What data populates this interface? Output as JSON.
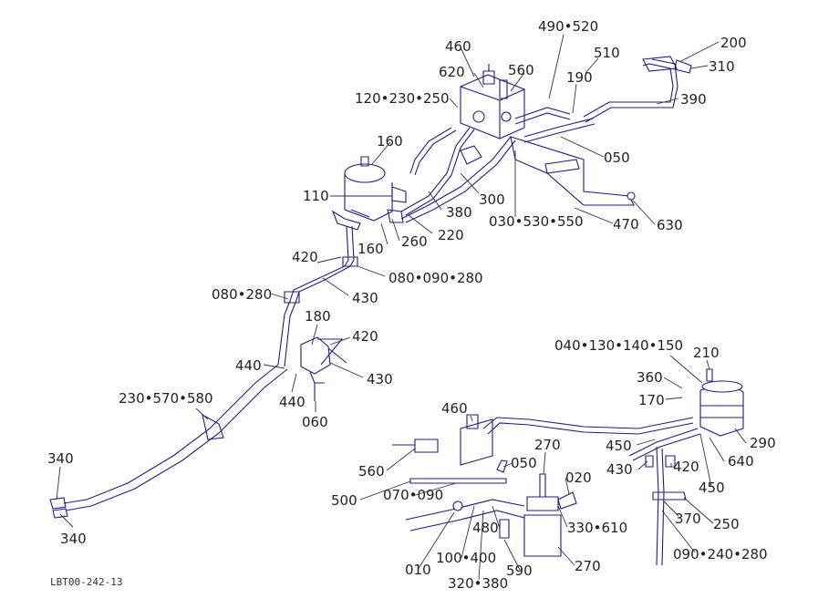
{
  "diagram_code": "LBT00-242-13",
  "colors": {
    "line": "#1c1c8a",
    "leader": "#333333",
    "text": "#222222"
  },
  "labels": {
    "l460a": "460",
    "l490": "490•520",
    "l200": "200",
    "l510": "510",
    "l620": "620",
    "l560a": "560",
    "l310": "310",
    "l190": "190",
    "l120": "120•230•250",
    "l390": "390",
    "l160a": "160",
    "l050a": "050",
    "l110": "110",
    "l300": "300",
    "l380": "380",
    "l030": "030•530•550",
    "l220": "220",
    "l260": "260",
    "l160b": "160",
    "l470": "470",
    "l630": "630",
    "l420a": "420",
    "l080a": "080•090•280",
    "l430a": "430",
    "l080b": "080•280",
    "l180": "180",
    "l420b": "420",
    "l440a": "440",
    "l430b": "430",
    "l440b": "440",
    "l060": "060",
    "l230": "230•570•580",
    "l340a": "340",
    "l340b": "340",
    "l040": "040•130•140•150",
    "l210": "210",
    "l360": "360",
    "l170": "170",
    "l460b": "460",
    "l290": "290",
    "l450a": "450",
    "l270a": "270",
    "l640": "640",
    "l560b": "560",
    "l050b": "050",
    "l020": "020",
    "l430c": "430",
    "l420c": "420",
    "l450b": "450",
    "l500": "500",
    "l070": "070•090",
    "l370": "370",
    "l250": "250",
    "l330": "330•610",
    "l480": "480",
    "l090": "090•240•280",
    "l010": "010",
    "l100": "100•400",
    "l270b": "270",
    "l590": "590",
    "l320": "320•380"
  }
}
